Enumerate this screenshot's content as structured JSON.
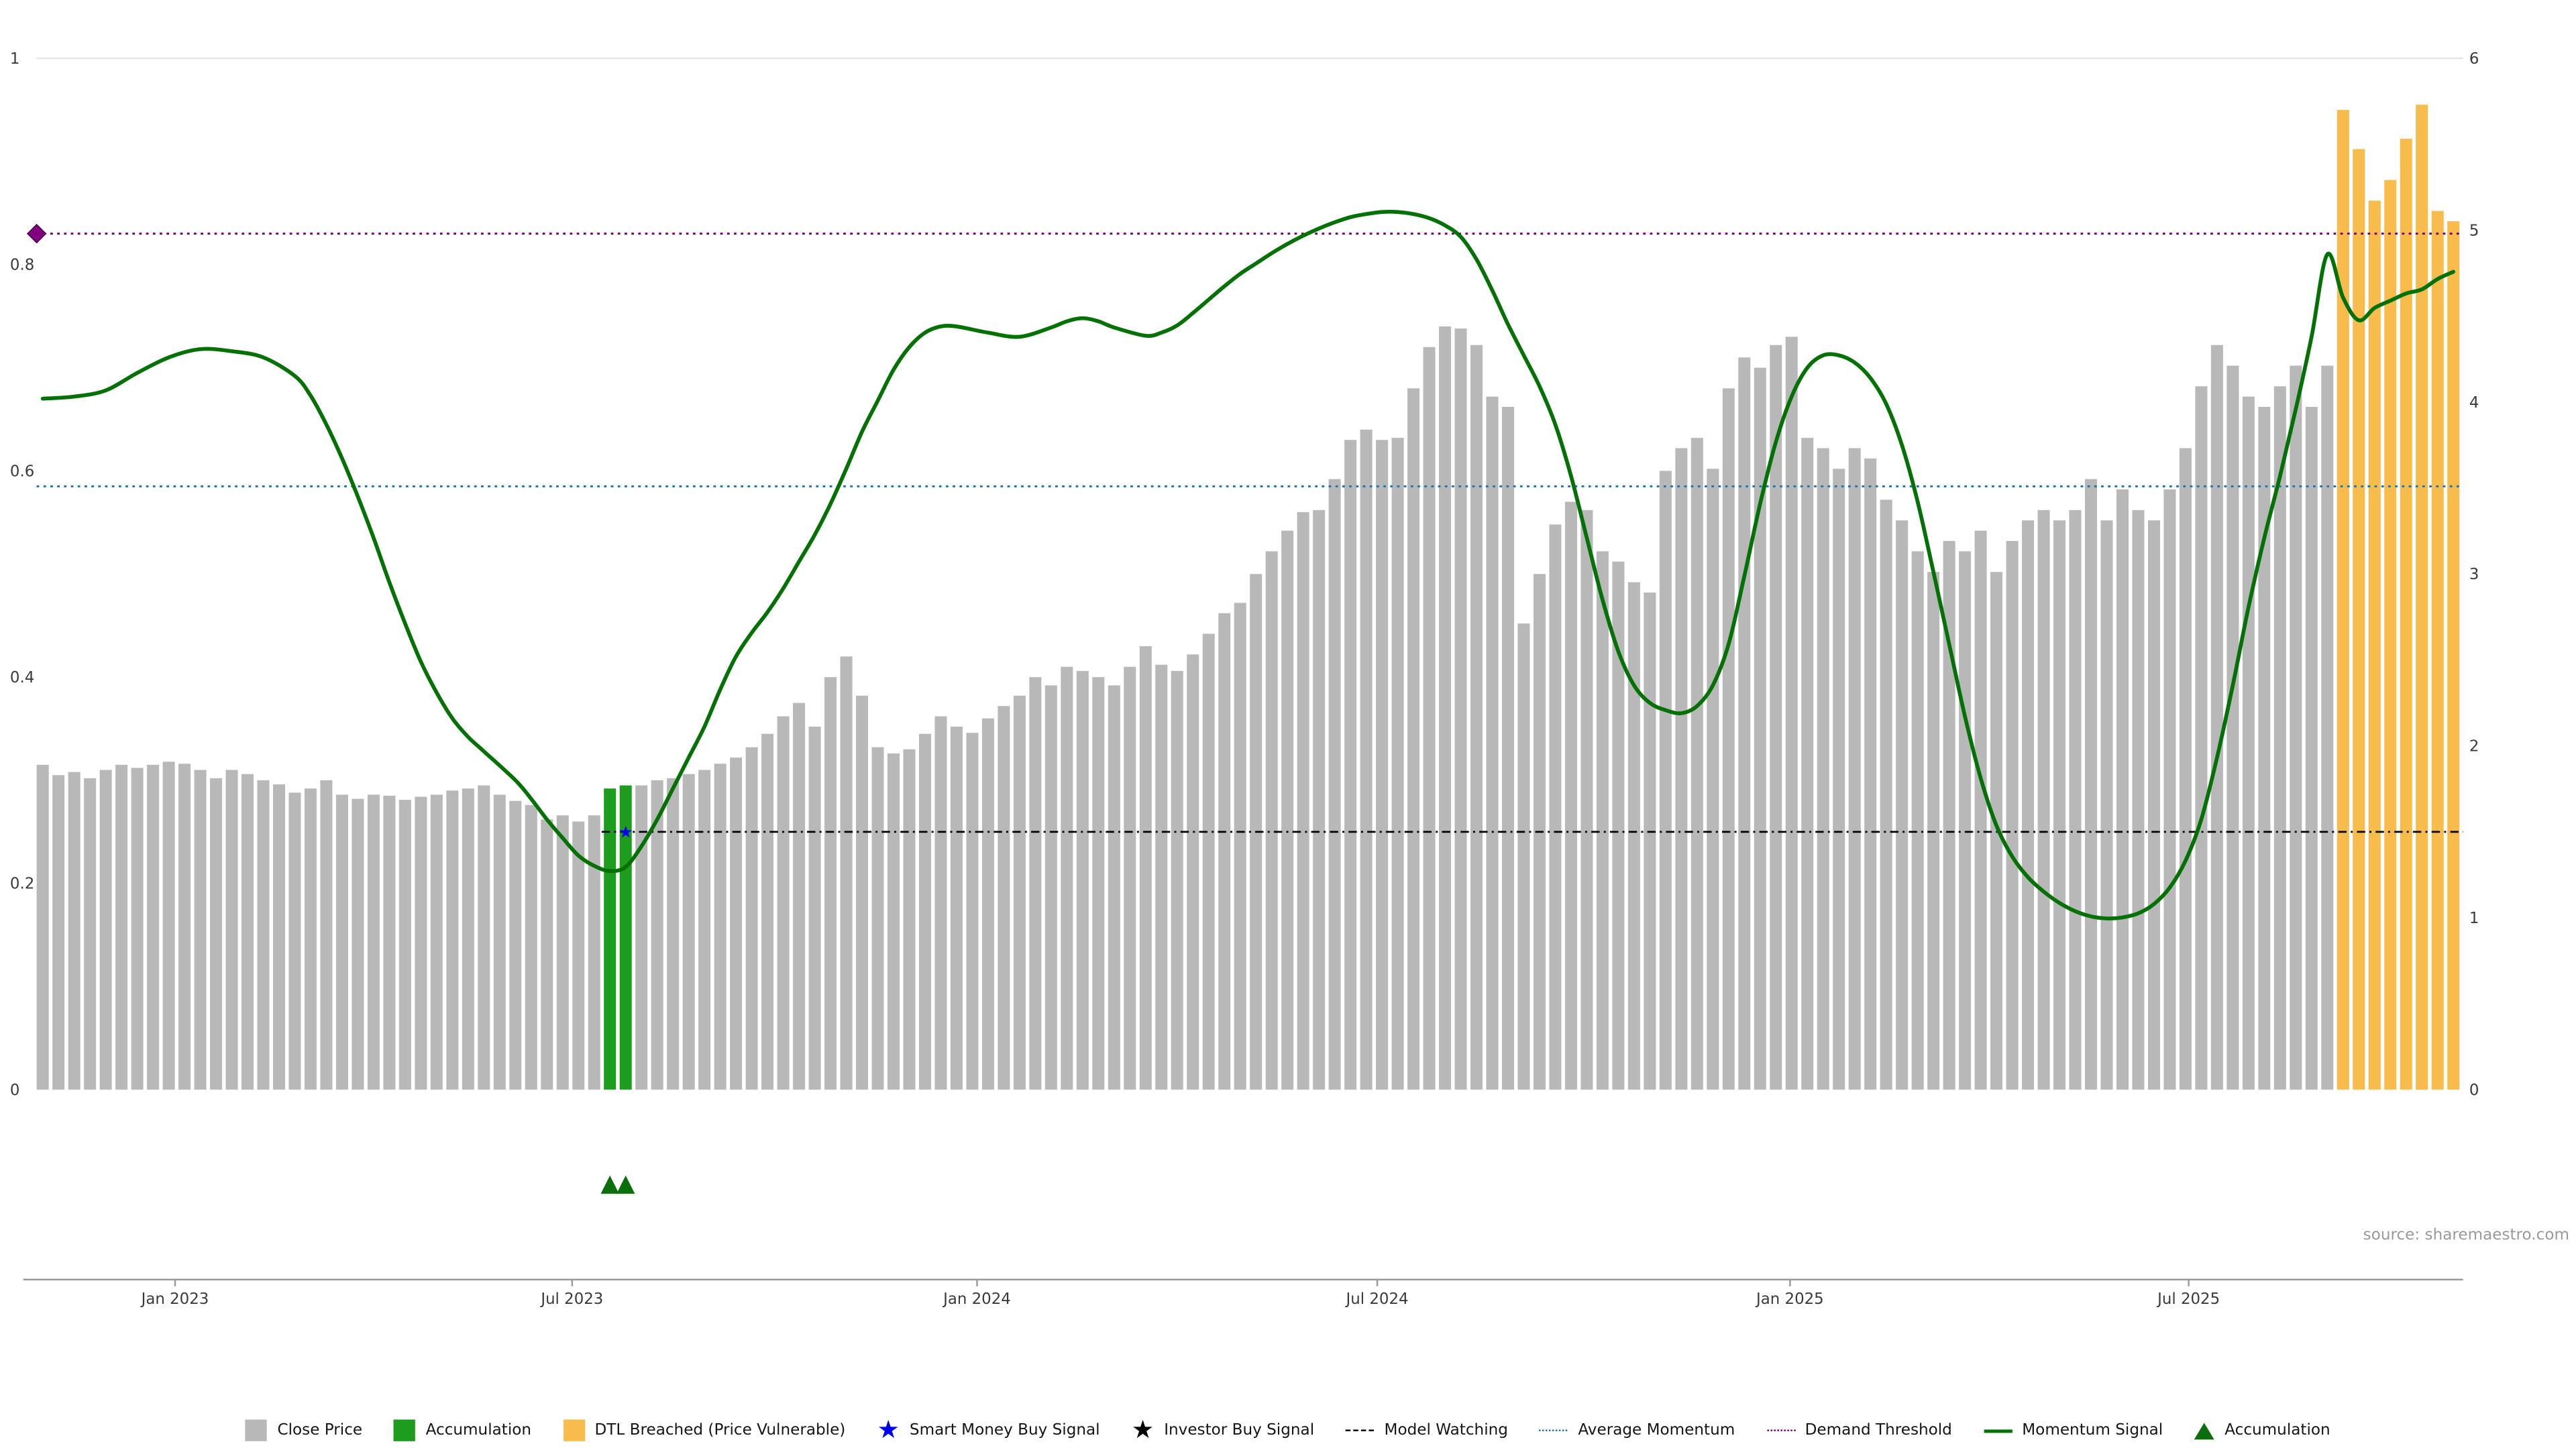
{
  "source_note": "source: sharemaestro.com",
  "colors": {
    "close_price": "#b8b8b8",
    "accumulation_bar": "#1e9c1e",
    "dtl_breached": "#f8bc4c",
    "momentum_line": "#047104",
    "accumulation_triangle": "#0b6e0b",
    "smart_money": "#0000ee",
    "investor": "#000000",
    "demand_threshold": "#800080",
    "average_momentum": "#1f77b4",
    "model_watching": "#000000",
    "axis_text": "#3a3a3a",
    "axis_line": "#9a9a9a",
    "gridline": "#e5e5e5",
    "source_text": "#9a9a9a"
  },
  "chart_data": {
    "type": "bar",
    "title": "",
    "xlabel": "",
    "ylabel": "",
    "grid": false,
    "legend_position": "bottom-center",
    "left_axis": {
      "range": [
        0,
        1
      ],
      "ticks": [
        0,
        0.2,
        0.4,
        0.6,
        0.8,
        1
      ]
    },
    "right_axis": {
      "range": [
        0,
        6
      ],
      "ticks": [
        0,
        1,
        2,
        3,
        4,
        5,
        6
      ]
    },
    "x_tick_labels": [
      "Jan 2023",
      "Jul 2023",
      "Jan 2024",
      "Jul 2024",
      "Jan 2025",
      "Jul 2025"
    ],
    "x_tick_positions": [
      8.4,
      33.6,
      59.3,
      84.7,
      110.9,
      136.2
    ],
    "bars": {
      "description": "Weekly Close Price bars, values on 0-1 left-axis scale",
      "values": [
        0.315,
        0.305,
        0.308,
        0.302,
        0.31,
        0.315,
        0.312,
        0.315,
        0.318,
        0.316,
        0.31,
        0.302,
        0.31,
        0.306,
        0.3,
        0.296,
        0.288,
        0.292,
        0.3,
        0.286,
        0.282,
        0.286,
        0.285,
        0.281,
        0.284,
        0.286,
        0.29,
        0.292,
        0.295,
        0.286,
        0.28,
        0.276,
        0.262,
        0.266,
        0.26,
        0.266,
        0.292,
        0.295,
        0.295,
        0.3,
        0.302,
        0.306,
        0.31,
        0.316,
        0.322,
        0.332,
        0.345,
        0.362,
        0.375,
        0.352,
        0.4,
        0.42,
        0.382,
        0.332,
        0.326,
        0.33,
        0.345,
        0.362,
        0.352,
        0.346,
        0.36,
        0.372,
        0.382,
        0.4,
        0.392,
        0.41,
        0.406,
        0.4,
        0.392,
        0.41,
        0.43,
        0.412,
        0.406,
        0.422,
        0.442,
        0.462,
        0.472,
        0.5,
        0.522,
        0.542,
        0.56,
        0.562,
        0.592,
        0.63,
        0.64,
        0.63,
        0.632,
        0.68,
        0.72,
        0.74,
        0.738,
        0.722,
        0.672,
        0.662,
        0.452,
        0.5,
        0.548,
        0.57,
        0.562,
        0.522,
        0.512,
        0.492,
        0.482,
        0.6,
        0.622,
        0.632,
        0.602,
        0.68,
        0.71,
        0.7,
        0.722,
        0.73,
        0.632,
        0.622,
        0.602,
        0.622,
        0.612,
        0.572,
        0.552,
        0.522,
        0.502,
        0.532,
        0.522,
        0.542,
        0.502,
        0.532,
        0.552,
        0.562,
        0.552,
        0.562,
        0.592,
        0.552,
        0.582,
        0.562,
        0.552,
        0.582,
        0.622,
        0.682,
        0.722,
        0.702,
        0.672,
        0.662,
        0.682,
        0.702,
        0.662,
        0.702,
        0.95,
        0.912,
        0.862,
        0.882,
        0.922,
        0.955,
        0.852,
        0.842
      ],
      "accumulation_indices": [
        36,
        37
      ],
      "dtl_breached_indices": [
        146,
        147,
        148,
        149,
        150,
        151,
        152,
        153
      ]
    },
    "momentum_signal": [
      [
        0,
        0.67
      ],
      [
        2,
        0.672
      ],
      [
        4,
        0.678
      ],
      [
        6,
        0.695
      ],
      [
        8,
        0.71
      ],
      [
        10,
        0.718
      ],
      [
        12,
        0.716
      ],
      [
        14,
        0.71
      ],
      [
        16,
        0.692
      ],
      [
        17,
        0.673
      ],
      [
        18,
        0.645
      ],
      [
        19,
        0.612
      ],
      [
        20,
        0.575
      ],
      [
        21,
        0.535
      ],
      [
        22,
        0.492
      ],
      [
        23,
        0.452
      ],
      [
        24,
        0.415
      ],
      [
        25,
        0.385
      ],
      [
        26,
        0.36
      ],
      [
        27,
        0.342
      ],
      [
        28,
        0.328
      ],
      [
        30,
        0.3
      ],
      [
        31,
        0.282
      ],
      [
        32,
        0.262
      ],
      [
        33,
        0.244
      ],
      [
        34,
        0.227
      ],
      [
        35,
        0.217
      ],
      [
        36,
        0.212
      ],
      [
        37,
        0.216
      ],
      [
        38,
        0.236
      ],
      [
        39,
        0.262
      ],
      [
        40,
        0.292
      ],
      [
        41,
        0.322
      ],
      [
        42,
        0.352
      ],
      [
        43,
        0.388
      ],
      [
        44,
        0.42
      ],
      [
        45,
        0.443
      ],
      [
        46,
        0.463
      ],
      [
        47,
        0.486
      ],
      [
        48,
        0.512
      ],
      [
        49,
        0.538
      ],
      [
        50,
        0.568
      ],
      [
        51,
        0.602
      ],
      [
        52,
        0.638
      ],
      [
        53,
        0.668
      ],
      [
        54,
        0.698
      ],
      [
        55,
        0.72
      ],
      [
        56,
        0.734
      ],
      [
        57,
        0.74
      ],
      [
        58,
        0.74
      ],
      [
        60,
        0.734
      ],
      [
        62,
        0.73
      ],
      [
        64,
        0.739
      ],
      [
        65,
        0.745
      ],
      [
        66,
        0.748
      ],
      [
        67,
        0.745
      ],
      [
        68,
        0.739
      ],
      [
        70,
        0.731
      ],
      [
        71,
        0.734
      ],
      [
        72,
        0.741
      ],
      [
        73,
        0.753
      ],
      [
        74,
        0.766
      ],
      [
        75,
        0.779
      ],
      [
        76,
        0.791
      ],
      [
        77,
        0.801
      ],
      [
        78,
        0.811
      ],
      [
        79,
        0.82
      ],
      [
        80,
        0.828
      ],
      [
        81,
        0.835
      ],
      [
        82,
        0.841
      ],
      [
        83,
        0.846
      ],
      [
        84,
        0.849
      ],
      [
        85,
        0.851
      ],
      [
        86,
        0.851
      ],
      [
        87,
        0.849
      ],
      [
        88,
        0.845
      ],
      [
        89,
        0.838
      ],
      [
        90,
        0.827
      ],
      [
        91,
        0.805
      ],
      [
        92,
        0.775
      ],
      [
        93,
        0.742
      ],
      [
        94,
        0.712
      ],
      [
        95,
        0.682
      ],
      [
        96,
        0.645
      ],
      [
        97,
        0.595
      ],
      [
        98,
        0.535
      ],
      [
        99,
        0.475
      ],
      [
        100,
        0.425
      ],
      [
        101,
        0.392
      ],
      [
        102,
        0.375
      ],
      [
        103,
        0.368
      ],
      [
        104,
        0.365
      ],
      [
        105,
        0.372
      ],
      [
        106,
        0.392
      ],
      [
        107,
        0.432
      ],
      [
        108,
        0.498
      ],
      [
        109,
        0.568
      ],
      [
        110,
        0.628
      ],
      [
        111,
        0.672
      ],
      [
        112,
        0.7
      ],
      [
        113,
        0.712
      ],
      [
        114,
        0.712
      ],
      [
        115,
        0.705
      ],
      [
        116,
        0.69
      ],
      [
        117,
        0.665
      ],
      [
        118,
        0.625
      ],
      [
        119,
        0.57
      ],
      [
        120,
        0.502
      ],
      [
        121,
        0.432
      ],
      [
        122,
        0.362
      ],
      [
        123,
        0.302
      ],
      [
        124,
        0.256
      ],
      [
        125,
        0.226
      ],
      [
        126,
        0.206
      ],
      [
        127,
        0.192
      ],
      [
        128,
        0.181
      ],
      [
        129,
        0.173
      ],
      [
        130,
        0.168
      ],
      [
        131,
        0.166
      ],
      [
        132,
        0.167
      ],
      [
        133,
        0.171
      ],
      [
        134,
        0.18
      ],
      [
        135,
        0.196
      ],
      [
        136,
        0.222
      ],
      [
        137,
        0.262
      ],
      [
        138,
        0.322
      ],
      [
        139,
        0.392
      ],
      [
        140,
        0.468
      ],
      [
        141,
        0.535
      ],
      [
        142,
        0.595
      ],
      [
        143,
        0.66
      ],
      [
        144,
        0.73
      ],
      [
        145,
        0.81
      ],
      [
        146,
        0.768
      ],
      [
        147,
        0.746
      ],
      [
        148,
        0.758
      ],
      [
        149,
        0.765
      ],
      [
        150,
        0.772
      ],
      [
        151,
        0.776
      ],
      [
        152,
        0.786
      ],
      [
        153,
        0.793
      ]
    ],
    "reference_lines": {
      "demand_threshold": {
        "value": 0.83,
        "color": "#800080"
      },
      "average_momentum": {
        "value": 0.585,
        "color": "#1f77b4"
      },
      "model_watching": {
        "value": 0.25,
        "color": "#000000",
        "start_index": 36
      }
    },
    "markers": {
      "demand_threshold_diamond": {
        "x_index": 0,
        "value": 0.83
      },
      "smart_money_buy_signal": {
        "x_index": 37,
        "value": 0.25
      },
      "accumulation_triangles": [
        36,
        37
      ]
    }
  },
  "legend": [
    {
      "label": "Close Price",
      "swatch": "square",
      "color": "#b8b8b8"
    },
    {
      "label": "Accumulation",
      "swatch": "square",
      "color": "#1e9c1e"
    },
    {
      "label": "DTL Breached (Price Vulnerable)",
      "swatch": "square",
      "color": "#f8bc4c"
    },
    {
      "label": "Smart Money Buy Signal",
      "swatch": "star",
      "color": "#0000ee"
    },
    {
      "label": "Investor Buy Signal",
      "swatch": "star",
      "color": "#000000"
    },
    {
      "label": "Model Watching",
      "swatch": "dashes",
      "color": "#000000"
    },
    {
      "label": "Average Momentum",
      "swatch": "dotted",
      "color": "#1f77b4"
    },
    {
      "label": "Demand Threshold",
      "swatch": "dotted",
      "color": "#800080"
    },
    {
      "label": "Momentum Signal",
      "swatch": "line",
      "color": "#047104"
    },
    {
      "label": "Accumulation",
      "swatch": "triangle",
      "color": "#0b6e0b"
    }
  ]
}
